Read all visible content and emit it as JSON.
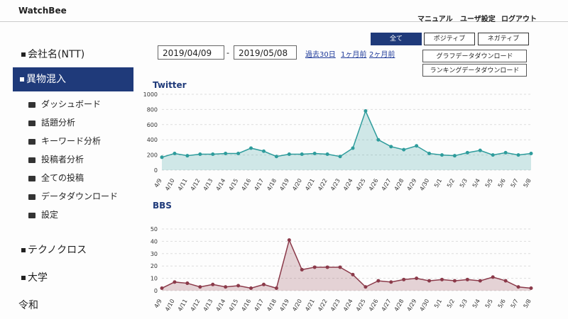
{
  "header": {
    "logo": "WatchBee",
    "links": [
      "マニュアル",
      "ユーザ設定",
      "ログアウト"
    ]
  },
  "tabs": [
    "全て",
    "ポジティブ",
    "ネガティブ"
  ],
  "sidebar": {
    "company": "会社名(NTT)",
    "active": "異物混入",
    "menu": [
      "ダッシュボード",
      "話題分析",
      "キーワード分析",
      "投稿者分析",
      "全ての投稿",
      "データダウンロード",
      "設定"
    ],
    "others": [
      "テクノクロス",
      "大学",
      "令和"
    ]
  },
  "filters": {
    "start": "2019/04/09",
    "separator": "-",
    "end": "2019/05/08",
    "presets": [
      "過去30日",
      "1ヶ月前",
      "2ヶ月前"
    ],
    "buttons": [
      "グラフデータダウンロード",
      "ランキングデータダウンロード"
    ]
  },
  "chart_data": [
    {
      "type": "line",
      "title": "Twitter",
      "categories": [
        "4/9",
        "4/10",
        "4/11",
        "4/12",
        "4/13",
        "4/14",
        "4/15",
        "4/16",
        "4/17",
        "4/18",
        "4/19",
        "4/20",
        "4/21",
        "4/22",
        "4/23",
        "4/24",
        "4/25",
        "4/26",
        "4/27",
        "4/28",
        "4/29",
        "4/30",
        "5/1",
        "5/2",
        "5/3",
        "5/4",
        "5/5",
        "5/6",
        "5/7",
        "5/8"
      ],
      "values": [
        170,
        220,
        190,
        210,
        210,
        220,
        220,
        290,
        250,
        180,
        210,
        210,
        220,
        210,
        180,
        290,
        780,
        400,
        310,
        270,
        320,
        220,
        200,
        190,
        230,
        260,
        200,
        230,
        200,
        220
      ],
      "color": "#2e9c9c",
      "ylim": [
        0,
        1000
      ],
      "yticks": [
        0,
        200,
        400,
        600,
        800,
        1000
      ],
      "grid": true
    },
    {
      "type": "line",
      "title": "BBS",
      "categories": [
        "4/9",
        "4/10",
        "4/11",
        "4/12",
        "4/13",
        "4/14",
        "4/15",
        "4/16",
        "4/17",
        "4/18",
        "4/19",
        "4/20",
        "4/21",
        "4/22",
        "4/23",
        "4/24",
        "4/25",
        "4/26",
        "4/27",
        "4/28",
        "4/29",
        "4/30",
        "5/1",
        "5/2",
        "5/3",
        "5/4",
        "5/5",
        "5/6",
        "5/7",
        "5/8"
      ],
      "values": [
        2,
        7,
        6,
        3,
        5,
        3,
        4,
        2,
        5,
        2,
        41,
        17,
        19,
        19,
        19,
        13,
        3,
        8,
        7,
        9,
        10,
        8,
        9,
        8,
        9,
        8,
        11,
        8,
        3,
        2
      ],
      "color": "#8b3a4a",
      "ylim": [
        0,
        50
      ],
      "yticks": [
        0,
        10,
        20,
        30,
        40,
        50
      ],
      "grid": true
    }
  ]
}
